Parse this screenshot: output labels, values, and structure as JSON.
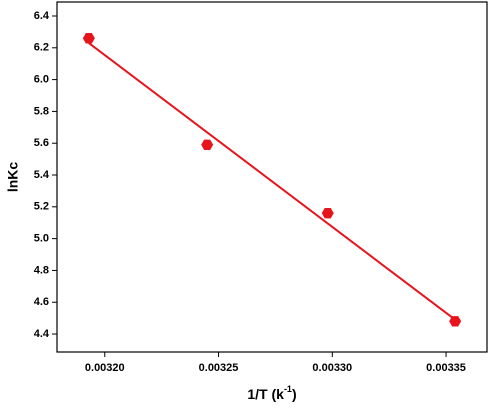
{
  "chart_data": {
    "type": "scatter",
    "xlabel": "1/T (k",
    "xlabel_sup": "-1",
    "xlabel_end": ")",
    "ylabel": "lnKc",
    "xlim": [
      0.003179,
      0.003368
    ],
    "ylim": [
      4.287,
      6.488
    ],
    "xticks": [
      {
        "value": 0.0032,
        "label": "0.00320"
      },
      {
        "value": 0.00325,
        "label": "0.00325"
      },
      {
        "value": 0.0033,
        "label": "0.00330"
      },
      {
        "value": 0.00335,
        "label": "0.00335"
      }
    ],
    "yticks": [
      4.4,
      4.6,
      4.8,
      {
        "value": 5.0,
        "label": "5.0"
      },
      5.2,
      5.4,
      5.6,
      5.8,
      {
        "value": 6.0,
        "label": "6.0"
      },
      6.2,
      6.4
    ],
    "series": [
      {
        "kind": "points",
        "color": "#e8141c",
        "x": [
          0.003193,
          0.003245,
          0.003298,
          0.003354
        ],
        "values": [
          6.26,
          5.59,
          5.16,
          4.48
        ]
      },
      {
        "kind": "line",
        "color": "#e8141c",
        "x": [
          0.003193,
          0.003354
        ],
        "values": [
          6.23,
          4.49
        ]
      }
    ]
  }
}
